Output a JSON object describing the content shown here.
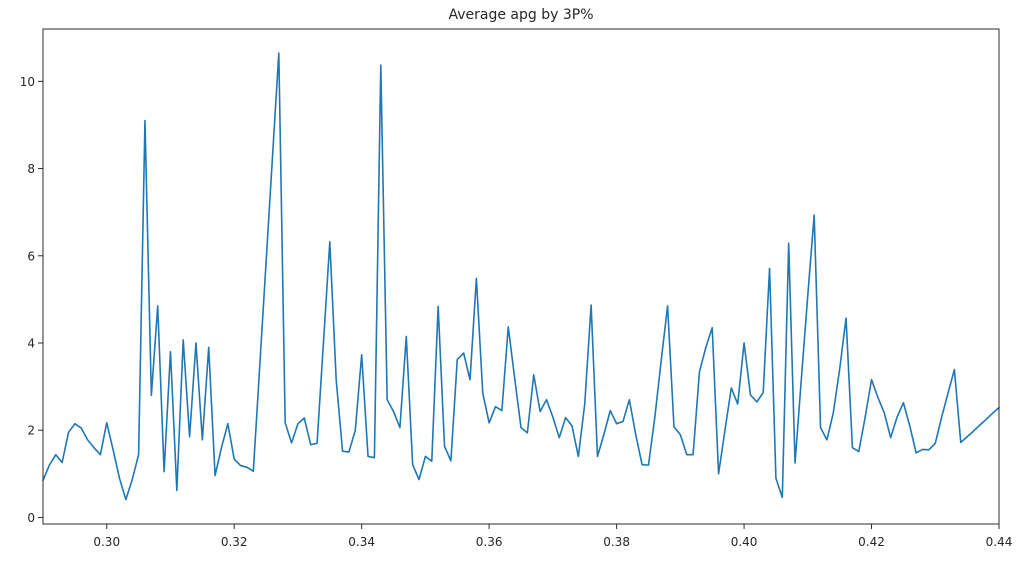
{
  "figure": {
    "title": "Average apg by 3P%"
  },
  "chart_data": {
    "type": "line",
    "title": "Average apg by 3P%",
    "xlabel": "",
    "ylabel": "",
    "legend": null,
    "grid": false,
    "line_color": "#1f77b4",
    "background_color": "#ffffff",
    "spine_color": "#2b2b2b",
    "xlim": [
      0.29,
      0.44
    ],
    "ylim": [
      -0.15,
      11.2
    ],
    "x_tick_labels": [
      "0.30",
      "0.32",
      "0.34",
      "0.36",
      "0.38",
      "0.40",
      "0.42",
      "0.44"
    ],
    "x_ticks": [
      0.3,
      0.32,
      0.34,
      0.36,
      0.38,
      0.4,
      0.42,
      0.44
    ],
    "y_tick_labels": [
      "0",
      "2",
      "4",
      "6",
      "8",
      "10"
    ],
    "y_ticks": [
      0,
      2,
      4,
      6,
      8,
      10
    ],
    "x": [
      0.29,
      0.291,
      0.292,
      0.293,
      0.294,
      0.295,
      0.296,
      0.297,
      0.298,
      0.299,
      0.3,
      0.301,
      0.302,
      0.303,
      0.304,
      0.305,
      0.306,
      0.307,
      0.308,
      0.309,
      0.31,
      0.311,
      0.312,
      0.313,
      0.314,
      0.315,
      0.316,
      0.317,
      0.318,
      0.319,
      0.32,
      0.321,
      0.322,
      0.323,
      0.324,
      0.325,
      0.326,
      0.327,
      0.328,
      0.329,
      0.33,
      0.331,
      0.332,
      0.333,
      0.334,
      0.335,
      0.336,
      0.337,
      0.338,
      0.339,
      0.34,
      0.341,
      0.342,
      0.343,
      0.344,
      0.345,
      0.346,
      0.347,
      0.348,
      0.349,
      0.35,
      0.351,
      0.352,
      0.353,
      0.354,
      0.355,
      0.356,
      0.357,
      0.358,
      0.359,
      0.36,
      0.361,
      0.362,
      0.363,
      0.364,
      0.365,
      0.366,
      0.367,
      0.368,
      0.369,
      0.37,
      0.371,
      0.372,
      0.373,
      0.374,
      0.375,
      0.376,
      0.377,
      0.378,
      0.379,
      0.38,
      0.381,
      0.382,
      0.383,
      0.384,
      0.385,
      0.386,
      0.387,
      0.388,
      0.389,
      0.39,
      0.391,
      0.392,
      0.393,
      0.394,
      0.395,
      0.396,
      0.397,
      0.398,
      0.399,
      0.4,
      0.401,
      0.402,
      0.403,
      0.404,
      0.405,
      0.406,
      0.407,
      0.408,
      0.409,
      0.41,
      0.411,
      0.412,
      0.413,
      0.414,
      0.415,
      0.416,
      0.417,
      0.418,
      0.419,
      0.42,
      0.421,
      0.422,
      0.423,
      0.424,
      0.425,
      0.426,
      0.427,
      0.428,
      0.429,
      0.43,
      0.431,
      0.432,
      0.433,
      0.434,
      0.435,
      0.436,
      0.437,
      0.438,
      0.439,
      0.44
    ],
    "y": [
      0.85,
      1.2,
      1.44,
      1.26,
      1.95,
      2.15,
      2.05,
      1.78,
      1.6,
      1.44,
      2.17,
      1.55,
      0.9,
      0.41,
      0.87,
      1.44,
      9.1,
      2.8,
      4.85,
      1.05,
      3.8,
      0.62,
      4.07,
      1.85,
      4.0,
      1.78,
      3.9,
      0.96,
      1.6,
      2.15,
      1.34,
      1.19,
      1.15,
      1.06,
      3.45,
      5.85,
      8.25,
      10.65,
      2.17,
      1.71,
      2.15,
      2.28,
      1.67,
      1.7,
      4.0,
      6.32,
      3.16,
      1.52,
      1.5,
      2.0,
      3.73,
      1.4,
      1.37,
      10.37,
      2.7,
      2.43,
      2.06,
      4.15,
      1.21,
      0.87,
      1.4,
      1.29,
      4.84,
      1.63,
      1.3,
      3.62,
      3.77,
      3.16,
      5.48,
      2.85,
      2.17,
      2.54,
      2.45,
      4.37,
      3.2,
      2.06,
      1.94,
      3.27,
      2.43,
      2.7,
      2.3,
      1.83,
      2.29,
      2.1,
      1.4,
      2.6,
      4.87,
      1.4,
      1.9,
      2.45,
      2.15,
      2.2,
      2.7,
      1.9,
      1.21,
      1.2,
      2.3,
      3.6,
      4.85,
      2.08,
      1.9,
      1.44,
      1.44,
      3.34,
      3.9,
      4.35,
      1.0,
      2.0,
      2.97,
      2.6,
      4.0,
      2.81,
      2.65,
      2.86,
      5.71,
      0.9,
      0.46,
      6.29,
      1.25,
      3.2,
      5.1,
      6.93,
      2.06,
      1.78,
      2.4,
      3.4,
      4.57,
      1.6,
      1.51,
      2.3,
      3.16,
      2.75,
      2.4,
      1.83,
      2.3,
      2.63,
      2.1,
      1.48,
      1.56,
      1.55,
      1.7,
      2.3,
      2.85,
      3.39,
      1.72,
      1.85,
      1.98,
      2.12,
      2.25,
      2.39,
      2.52
    ]
  }
}
